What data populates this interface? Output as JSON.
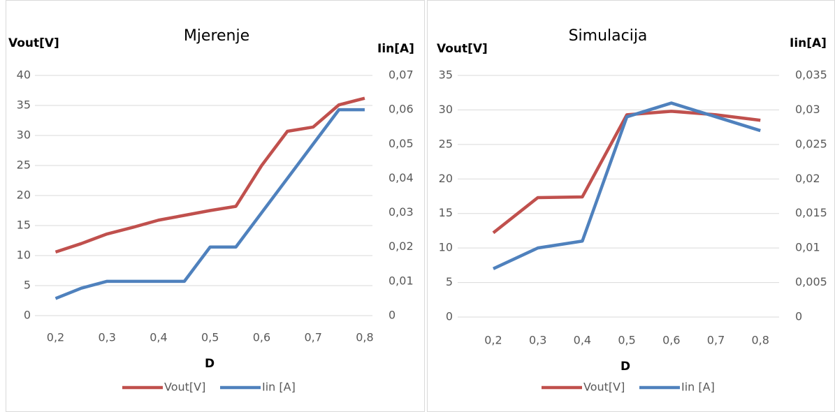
{
  "chart_data": [
    {
      "type": "line",
      "title": "Mjerenje",
      "x_label": "D",
      "y_label": "Vout[V]",
      "y2_label": "Iin[A]",
      "x": [
        0.2,
        0.25,
        0.3,
        0.35,
        0.4,
        0.45,
        0.5,
        0.55,
        0.6,
        0.65,
        0.7,
        0.75,
        0.8
      ],
      "xlim": [
        0.16,
        0.815
      ],
      "xticks": [
        {
          "value": 0.2,
          "label": "0,2"
        },
        {
          "value": 0.3,
          "label": "0,3"
        },
        {
          "value": 0.4,
          "label": "0,4"
        },
        {
          "value": 0.5,
          "label": "0,5"
        },
        {
          "value": 0.6,
          "label": "0,6"
        },
        {
          "value": 0.7,
          "label": "0,7"
        },
        {
          "value": 0.8,
          "label": "0,8"
        }
      ],
      "ylim": [
        0,
        40
      ],
      "yticks": [
        0,
        5,
        10,
        15,
        20,
        25,
        30,
        35,
        40
      ],
      "y2lim": [
        0,
        0.07
      ],
      "y2ticks": [
        0,
        {
          "value": 0.01,
          "label": "0,01"
        },
        {
          "value": 0.02,
          "label": "0,02"
        },
        {
          "value": 0.03,
          "label": "0,03"
        },
        {
          "value": 0.04,
          "label": "0,04"
        },
        {
          "value": 0.05,
          "label": "0,05"
        },
        {
          "value": 0.06,
          "label": "0,06"
        },
        {
          "value": 0.07,
          "label": "0,07"
        }
      ],
      "grid": true,
      "series": [
        {
          "name": "Vout[V]",
          "color": "#c0504d",
          "values": [
            10.6,
            12,
            13.6,
            14.7,
            15.9,
            16.7,
            17.5,
            18.2,
            25,
            30.7,
            31.4,
            35.1,
            36.2
          ]
        },
        {
          "name": "Iin [A]",
          "color": "#4f81bd",
          "axis": "y2",
          "values": [
            0.005,
            0.008,
            0.01,
            0.01,
            0.01,
            0.01,
            0.02,
            0.02,
            0.03,
            0.04,
            0.05,
            0.06,
            0.06
          ]
        }
      ]
    },
    {
      "type": "line",
      "title": "Simulacija",
      "x_label": "D",
      "y_label": "Vout[V]",
      "y2_label": "Iin[A]",
      "x": [
        0.2,
        0.3,
        0.4,
        0.5,
        0.6,
        0.7,
        0.8
      ],
      "xlim": [
        0.12,
        0.842
      ],
      "xticks": [
        {
          "value": 0.2,
          "label": "0,2"
        },
        {
          "value": 0.3,
          "label": "0,3"
        },
        {
          "value": 0.4,
          "label": "0,4"
        },
        {
          "value": 0.5,
          "label": "0,5"
        },
        {
          "value": 0.6,
          "label": "0,6"
        },
        {
          "value": 0.7,
          "label": "0,7"
        },
        {
          "value": 0.8,
          "label": "0,8"
        }
      ],
      "ylim": [
        0,
        35
      ],
      "yticks": [
        0,
        5,
        10,
        15,
        20,
        25,
        30,
        35
      ],
      "y2lim": [
        0,
        0.035
      ],
      "y2ticks": [
        0,
        {
          "value": 0.005,
          "label": "0,005"
        },
        {
          "value": 0.01,
          "label": "0,01"
        },
        {
          "value": 0.015,
          "label": "0,015"
        },
        {
          "value": 0.02,
          "label": "0,02"
        },
        {
          "value": 0.025,
          "label": "0,025"
        },
        {
          "value": 0.03,
          "label": "0,03"
        },
        {
          "value": 0.035,
          "label": "0,035"
        }
      ],
      "grid": true,
      "series": [
        {
          "name": "Vout[V]",
          "color": "#c0504d",
          "values": [
            12.2,
            17.3,
            17.4,
            29.3,
            29.8,
            29.3,
            28.5
          ]
        },
        {
          "name": "Iin [A]",
          "color": "#4f81bd",
          "axis": "y2",
          "values": [
            0.007,
            0.01,
            0.011,
            0.029,
            0.031,
            0.029,
            0.027
          ]
        }
      ]
    }
  ]
}
